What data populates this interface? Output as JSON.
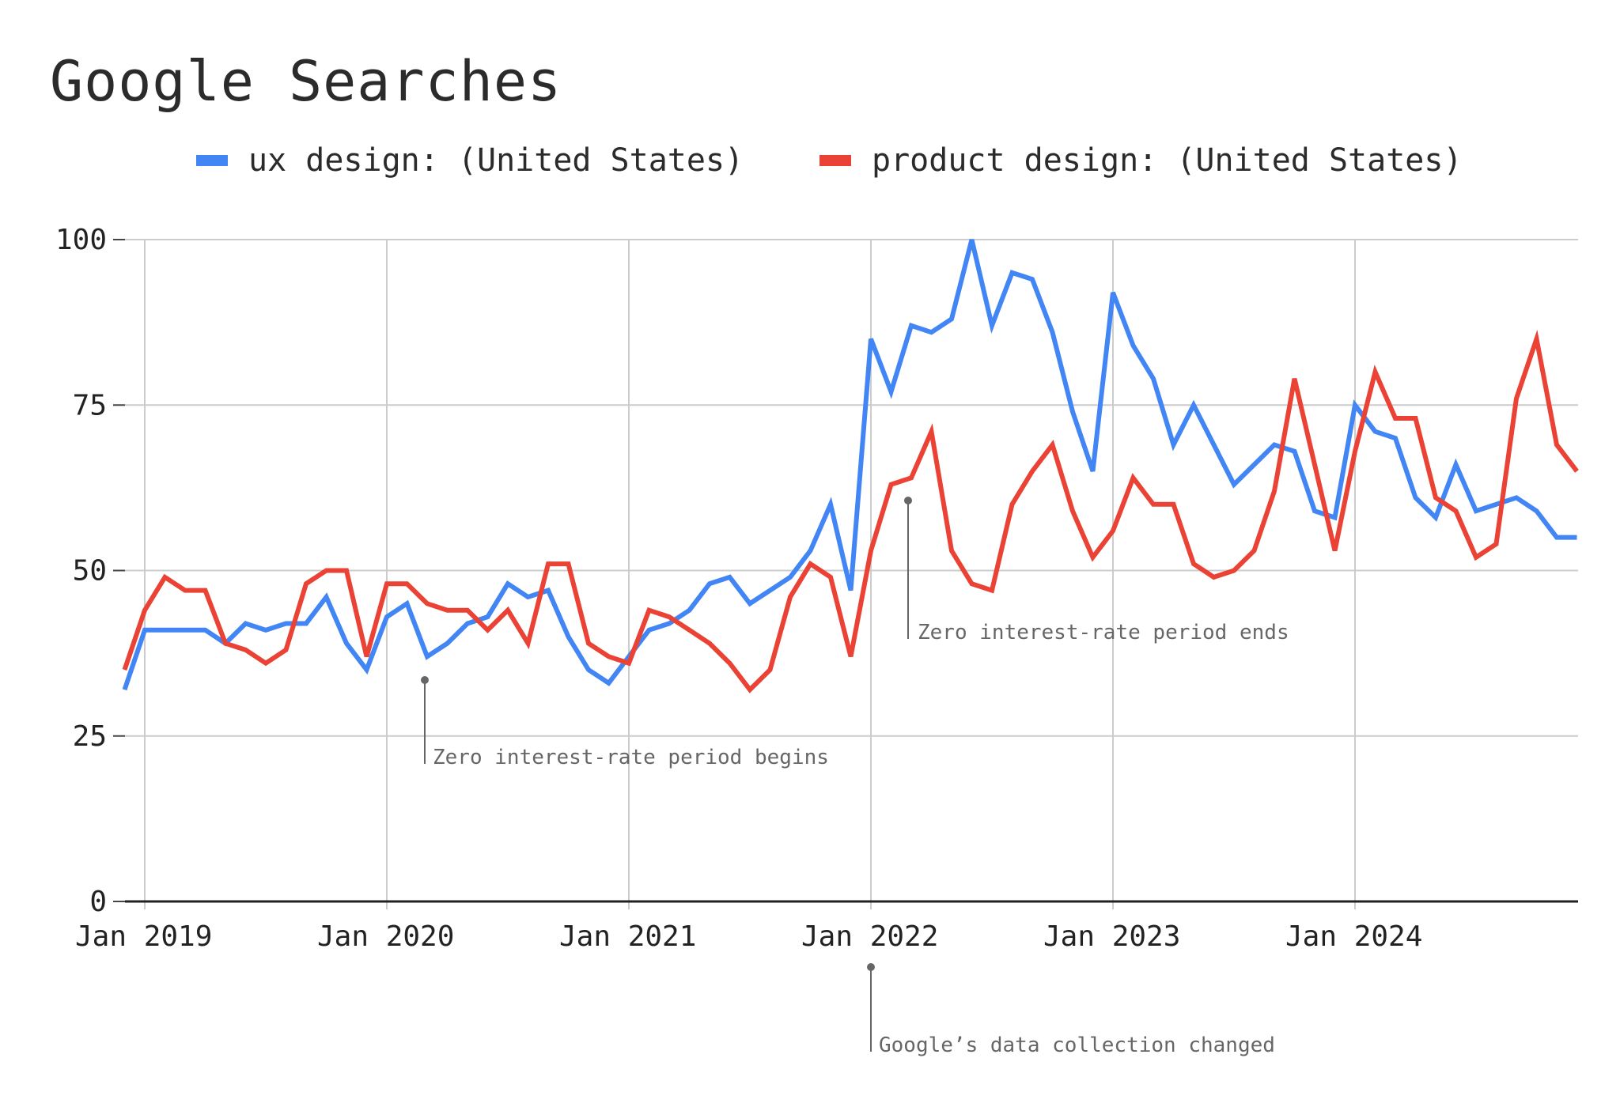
{
  "chart_data": {
    "type": "line",
    "title": "Google Searches",
    "x_labels": [
      "Jan 2019",
      "Jan 2020",
      "Jan 2021",
      "Jan 2022",
      "Jan 2023",
      "Jan 2024"
    ],
    "x_start": "Dec 2018",
    "x_end": "Dec 2024",
    "ylim": [
      0,
      100
    ],
    "y_ticks": [
      0,
      25,
      50,
      75,
      100
    ],
    "grid": true,
    "legend_position": "top",
    "series": [
      {
        "name": "ux design: (United States)",
        "color": "#4285f4",
        "values": [
          32,
          41,
          41,
          41,
          41,
          39,
          42,
          41,
          42,
          42,
          46,
          39,
          35,
          43,
          45,
          37,
          39,
          42,
          43,
          48,
          46,
          47,
          40,
          35,
          33,
          37,
          41,
          42,
          44,
          48,
          49,
          45,
          47,
          49,
          53,
          60,
          47,
          85,
          77,
          87,
          86,
          88,
          100,
          87,
          95,
          94,
          86,
          74,
          65,
          92,
          84,
          79,
          69,
          75,
          69,
          63,
          66,
          69,
          68,
          59,
          58,
          75,
          71,
          70,
          61,
          58,
          66,
          59,
          60,
          61,
          59,
          55,
          55
        ]
      },
      {
        "name": "product design: (United States)",
        "color": "#ea4335",
        "values": [
          35,
          44,
          49,
          47,
          47,
          39,
          38,
          36,
          38,
          48,
          50,
          50,
          37,
          48,
          48,
          45,
          44,
          44,
          41,
          44,
          39,
          51,
          51,
          39,
          37,
          36,
          44,
          43,
          41,
          39,
          36,
          32,
          35,
          46,
          51,
          49,
          37,
          53,
          63,
          64,
          71,
          53,
          48,
          47,
          60,
          65,
          69,
          59,
          52,
          56,
          64,
          60,
          60,
          51,
          49,
          50,
          53,
          62,
          79,
          66,
          53,
          68,
          80,
          73,
          73,
          61,
          59,
          52,
          54,
          76,
          85,
          69,
          65
        ]
      }
    ],
    "annotations": [
      {
        "text": "Zero interest-rate period begins",
        "date": "Mar 2020"
      },
      {
        "text": "Zero interest-rate period ends",
        "date": "Mar 2022"
      },
      {
        "text": "Google’s data collection changed",
        "date": "Jan 2022"
      }
    ]
  }
}
